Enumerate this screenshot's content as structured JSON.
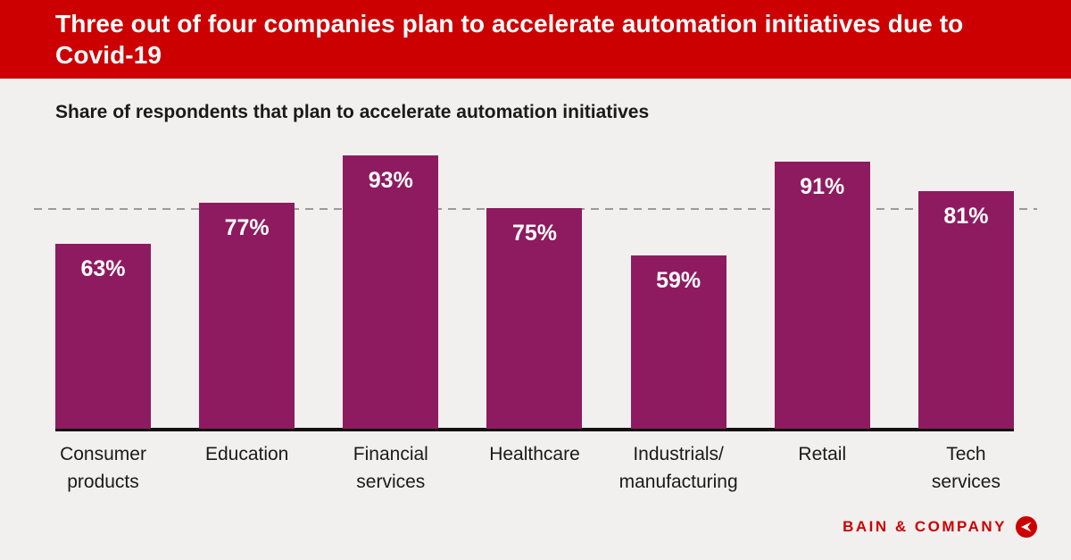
{
  "header": {
    "title": "Three out of four companies plan to accelerate automation initiatives due to Covid-19"
  },
  "chart_data": {
    "type": "bar",
    "title": "Share of respondents that plan to accelerate automation initiatives",
    "categories": [
      "Consumer\nproducts",
      "Education",
      "Financial\nservices",
      "Healthcare",
      "Industrials/\nmanufacturing",
      "Retail",
      "Tech\nservices"
    ],
    "values": [
      63,
      77,
      93,
      75,
      59,
      91,
      81
    ],
    "value_labels": [
      "63%",
      "77%",
      "93%",
      "75%",
      "59%",
      "91%",
      "81%"
    ],
    "xlabel": "",
    "ylabel": "",
    "ylim": [
      0,
      100
    ],
    "grid": false,
    "legend": "none",
    "reference_line": {
      "value": 75,
      "style": "dashed"
    },
    "bar_color": "#8e1b60",
    "value_label_color": "#ffffff"
  },
  "footer": {
    "brand": "BAIN & COMPANY"
  },
  "colors": {
    "banner": "#cc0000",
    "background": "#f2f0ee",
    "text": "#1a1a1a",
    "dashed_line": "#9b9b9b",
    "brand_red": "#cc0000"
  }
}
